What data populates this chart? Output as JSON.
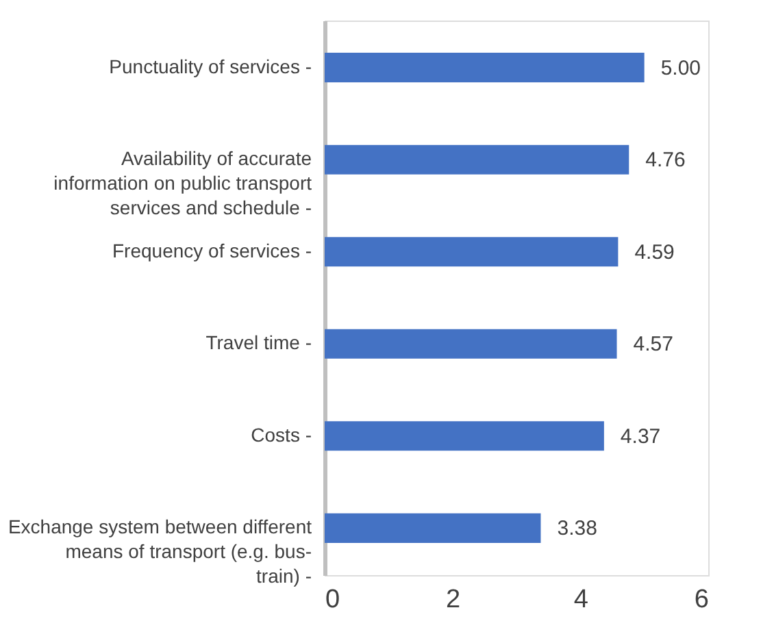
{
  "chart_data": {
    "type": "bar",
    "orientation": "horizontal",
    "categories": [
      "Punctuality of services -",
      "Availability of accurate information on public transport services and schedule -",
      "Frequency of services -",
      "Travel time -",
      "Costs -",
      "Exchange system between different means of transport (e.g. bus-train) -"
    ],
    "values": [
      5.0,
      4.76,
      4.59,
      4.57,
      4.37,
      3.38
    ],
    "value_labels": [
      "5.00",
      "4.76",
      "4.59",
      "4.57",
      "4.37",
      "3.38"
    ],
    "color": "#4472c4",
    "xlim": [
      0,
      6
    ],
    "xticks": [
      0,
      2,
      4,
      6
    ],
    "grid": false
  }
}
